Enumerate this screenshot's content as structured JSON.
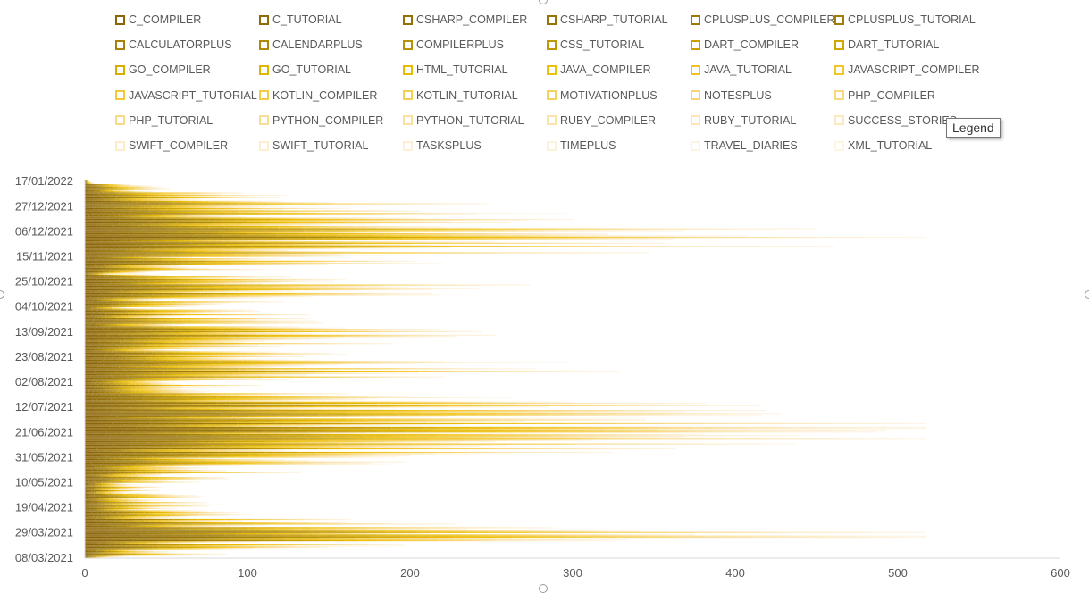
{
  "tooltip": {
    "text": "Legend"
  },
  "legend_entries": [
    "C_COMPILER",
    "C_TUTORIAL",
    "CSHARP_COMPILER",
    "CSHARP_TUTORIAL",
    "CPLUSPLUS_COMPILER",
    "CPLUSPLUS_TUTORIAL",
    "CALCULATORPLUS",
    "CALENDARPLUS",
    "COMPILERPLUS",
    "CSS_TUTORIAL",
    "DART_COMPILER",
    "DART_TUTORIAL",
    "GO_COMPILER",
    "GO_TUTORIAL",
    "HTML_TUTORIAL",
    "JAVA_COMPILER",
    "JAVA_TUTORIAL",
    "JAVASCRIPT_COMPILER",
    "JAVASCRIPT_TUTORIAL",
    "KOTLIN_COMPILER",
    "KOTLIN_TUTORIAL",
    "MOTIVATIONPLUS",
    "NOTESPLUS",
    "PHP_COMPILER",
    "PHP_TUTORIAL",
    "PYTHON_COMPILER",
    "PYTHON_TUTORIAL",
    "RUBY_COMPILER",
    "RUBY_TUTORIAL",
    "SUCCESS_STORIES",
    "SWIFT_COMPILER",
    "SWIFT_TUTORIAL",
    "TASKSPLUS",
    "TIMEPLUS",
    "TRAVEL_DIARIES",
    "XML_TUTORIAL"
  ],
  "colors": {
    "series": [
      "#8B6508",
      "#8F6A08",
      "#936F08",
      "#977308",
      "#9B7808",
      "#A07C08",
      "#A88308",
      "#B08A07",
      "#B89106",
      "#C09805",
      "#C89F04",
      "#D0A603",
      "#D8AD02",
      "#E0B401",
      "#E8BA01",
      "#EDBF0E",
      "#F0C31C",
      "#F2C62A",
      "#F3C938",
      "#F4CC46",
      "#F5CF54",
      "#F6D262",
      "#F7D570",
      "#F8D87E",
      "#F9DB8C",
      "#F9DE98",
      "#FAE1A3",
      "#FAE4AE",
      "#FBE7B8",
      "#FBEAC1",
      "#FCECC9",
      "#FCEED0",
      "#FDF0D6",
      "#FDF2DC",
      "#FDF3E1",
      "#FEF5E6"
    ],
    "axis": "#d9d9d9",
    "tick_text": "#595959"
  },
  "chart_data": {
    "type": "bar",
    "orientation": "horizontal",
    "stacked": true,
    "series_count": 36,
    "category_axis": {
      "tick_labels": [
        "17/01/2022",
        "27/12/2021",
        "06/12/2021",
        "15/11/2021",
        "25/10/2021",
        "04/10/2021",
        "13/09/2021",
        "23/08/2021",
        "02/08/2021",
        "12/07/2021",
        "21/06/2021",
        "31/05/2021",
        "10/05/2021",
        "19/04/2021",
        "29/03/2021",
        "08/03/2021"
      ],
      "first_date": "08/03/2021",
      "last_date": "17/01/2022",
      "interval": "daily"
    },
    "value_axis": {
      "min": 0,
      "max": 600,
      "tick_labels": [
        "0",
        "100",
        "200",
        "300",
        "400",
        "500",
        "600"
      ]
    },
    "daily_totals": [
      {
        "date": "08/03/2021",
        "total": 13
      },
      {
        "date": "15/03/2021",
        "total": 140
      },
      {
        "date": "22/03/2021",
        "total": 255
      },
      {
        "date": "25/03/2021",
        "total": 491
      },
      {
        "date": "29/03/2021",
        "total": 483
      },
      {
        "date": "05/04/2021",
        "total": 160
      },
      {
        "date": "12/04/2021",
        "total": 100
      },
      {
        "date": "19/04/2021",
        "total": 70
      },
      {
        "date": "26/04/2021",
        "total": 60
      },
      {
        "date": "03/05/2021",
        "total": 35
      },
      {
        "date": "10/05/2021",
        "total": 55
      },
      {
        "date": "17/05/2021",
        "total": 85
      },
      {
        "date": "24/05/2021",
        "total": 140
      },
      {
        "date": "31/05/2021",
        "total": 170
      },
      {
        "date": "03/06/2021",
        "total": 345
      },
      {
        "date": "07/06/2021",
        "total": 345
      },
      {
        "date": "14/06/2021",
        "total": 420
      },
      {
        "date": "18/06/2021",
        "total": 514
      },
      {
        "date": "23/06/2021",
        "total": 455
      },
      {
        "date": "28/06/2021",
        "total": 395
      },
      {
        "date": "05/07/2021",
        "total": 300
      },
      {
        "date": "12/07/2021",
        "total": 325
      },
      {
        "date": "19/07/2021",
        "total": 240
      },
      {
        "date": "26/07/2021",
        "total": 90
      },
      {
        "date": "02/08/2021",
        "total": 75
      },
      {
        "date": "09/08/2021",
        "total": 230
      },
      {
        "date": "13/08/2021",
        "total": 240
      },
      {
        "date": "16/08/2021",
        "total": 270
      },
      {
        "date": "23/08/2021",
        "total": 120
      },
      {
        "date": "30/08/2021",
        "total": 110
      },
      {
        "date": "06/09/2021",
        "total": 180
      },
      {
        "date": "13/09/2021",
        "total": 180
      },
      {
        "date": "20/09/2021",
        "total": 105
      },
      {
        "date": "27/09/2021",
        "total": 110
      },
      {
        "date": "04/10/2021",
        "total": 55
      },
      {
        "date": "11/10/2021",
        "total": 160
      },
      {
        "date": "18/10/2021",
        "total": 200
      },
      {
        "date": "25/10/2021",
        "total": 200
      },
      {
        "date": "01/11/2021",
        "total": 27
      },
      {
        "date": "08/11/2021",
        "total": 145
      },
      {
        "date": "15/11/2021",
        "total": 230
      },
      {
        "date": "22/11/2021",
        "total": 330
      },
      {
        "date": "29/11/2021",
        "total": 340
      },
      {
        "date": "03/12/2021",
        "total": 517
      },
      {
        "date": "06/12/2021",
        "total": 380
      },
      {
        "date": "13/12/2021",
        "total": 220
      },
      {
        "date": "20/12/2021",
        "total": 220
      },
      {
        "date": "27/12/2021",
        "total": 200
      },
      {
        "date": "03/01/2022",
        "total": 115
      },
      {
        "date": "10/01/2022",
        "total": 50
      },
      {
        "date": "17/01/2022",
        "total": 2
      }
    ]
  }
}
